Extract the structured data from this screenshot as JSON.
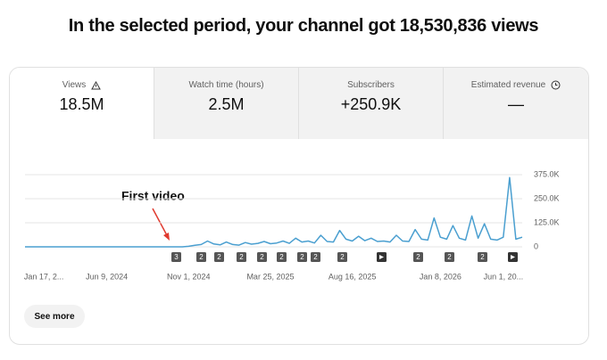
{
  "header": {
    "title": "In the selected period, your channel got 18,530,836 views"
  },
  "metrics": [
    {
      "label": "Views",
      "value": "18.5M"
    },
    {
      "label": "Watch time (hours)",
      "value": "2.5M"
    },
    {
      "label": "Subscribers",
      "value": "+250.9K"
    },
    {
      "label": "Estimated revenue",
      "value": "—"
    }
  ],
  "chart_data": {
    "type": "line",
    "annotation": "First video",
    "categories": [
      null,
      null,
      null,
      "Jan 17, 2...",
      null,
      null,
      null,
      null,
      null,
      null,
      null,
      null,
      null,
      "Jun 9, 2024",
      null,
      null,
      null,
      null,
      null,
      null,
      null,
      null,
      null,
      null,
      null,
      null,
      "Nov 1, 2024",
      null,
      null,
      null,
      null,
      null,
      null,
      null,
      null,
      null,
      null,
      null,
      null,
      "Mar 25, 2025",
      null,
      null,
      null,
      null,
      null,
      null,
      null,
      null,
      null,
      null,
      null,
      null,
      "Aug 16, 2025",
      null,
      null,
      null,
      null,
      null,
      null,
      null,
      null,
      null,
      null,
      null,
      null,
      null,
      "Jan 8, 2026",
      null,
      null,
      null,
      null,
      null,
      null,
      null,
      null,
      null,
      "Jun 1, 20...",
      null,
      null,
      null
    ],
    "series": [
      {
        "name": "Views",
        "color": "#4a9fd0",
        "values": [
          0,
          0,
          0,
          0,
          0,
          0,
          0,
          0,
          0,
          0,
          0,
          0,
          0,
          0,
          0,
          0,
          0,
          0,
          0,
          0,
          0,
          0,
          0,
          0,
          0,
          0,
          3000,
          8000,
          12000,
          30000,
          15000,
          10000,
          25000,
          12000,
          9000,
          22000,
          14000,
          18000,
          28000,
          16000,
          20000,
          30000,
          18000,
          45000,
          25000,
          30000,
          20000,
          60000,
          28000,
          25000,
          85000,
          40000,
          30000,
          55000,
          32000,
          45000,
          28000,
          30000,
          25000,
          60000,
          30000,
          28000,
          90000,
          40000,
          35000,
          150000,
          50000,
          40000,
          110000,
          45000,
          35000,
          160000,
          45000,
          120000,
          40000,
          35000,
          50000,
          360000,
          40000,
          50000
        ]
      }
    ],
    "ylim": [
      0,
      375000
    ],
    "yticks": [
      0,
      {
        "value": 125000,
        "label": "125.0K"
      },
      {
        "value": 250000,
        "label": "250.0K"
      },
      {
        "value": 375000,
        "label": "375.0K"
      }
    ],
    "grid": true,
    "video_markers": [
      "3",
      "2",
      "2",
      "2",
      "2",
      "2",
      "2",
      "2",
      "2",
      "2",
      "2",
      "2"
    ]
  },
  "button": {
    "label": "See more"
  }
}
